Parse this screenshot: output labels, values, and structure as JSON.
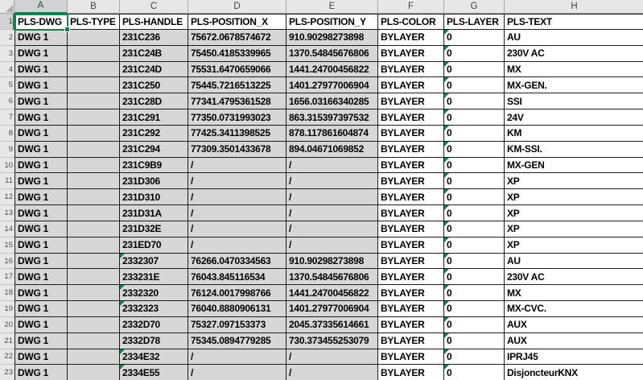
{
  "selection": {
    "cell": "A1",
    "column": "A",
    "row": "1"
  },
  "column_letters": [
    "A",
    "B",
    "C",
    "D",
    "E",
    "F",
    "G",
    "H"
  ],
  "row_numbers": [
    "1",
    "2",
    "3",
    "4",
    "5",
    "6",
    "7",
    "8",
    "9",
    "10",
    "11",
    "12",
    "13",
    "14",
    "15",
    "16",
    "17",
    "18",
    "19",
    "20",
    "21",
    "22",
    "23"
  ],
  "header_row": [
    "PLS-DWG",
    "PLS-TYPE",
    "PLS-HANDLE",
    "PLS-POSITION_X",
    "PLS-POSITION_Y",
    "PLS-COLOR",
    "PLS-LAYER",
    "PLS-TEXT"
  ],
  "rows": [
    {
      "cells": [
        "DWG 1",
        "",
        "231C236",
        "75672.0678574672",
        "910.90298273898",
        "BYLAYER",
        "0",
        "AU"
      ],
      "error_cols": [
        6
      ]
    },
    {
      "cells": [
        "DWG 1",
        "",
        "231C24B",
        "75450.4185339965",
        "1370.54845676806",
        "BYLAYER",
        "0",
        "230V AC"
      ],
      "error_cols": [
        6
      ]
    },
    {
      "cells": [
        "DWG 1",
        "",
        "231C24D",
        "75531.6470659066",
        "1441.24700456822",
        "BYLAYER",
        "0",
        "MX"
      ],
      "error_cols": [
        6
      ]
    },
    {
      "cells": [
        "DWG 1",
        "",
        "231C250",
        "75445.7216513225",
        "1401.27977006904",
        "BYLAYER",
        "0",
        "MX-GEN."
      ],
      "error_cols": [
        6
      ]
    },
    {
      "cells": [
        "DWG 1",
        "",
        "231C28D",
        "77341.4795361528",
        "1656.03166340285",
        "BYLAYER",
        "0",
        "SSI"
      ],
      "error_cols": [
        6
      ]
    },
    {
      "cells": [
        "DWG 1",
        "",
        "231C291",
        "77350.0731993023",
        "863.315397397532",
        "BYLAYER",
        "0",
        "24V"
      ],
      "error_cols": [
        6
      ]
    },
    {
      "cells": [
        "DWG 1",
        "",
        "231C292",
        "77425.3411398525",
        "878.117861604874",
        "BYLAYER",
        "0",
        "KM"
      ],
      "error_cols": [
        6
      ]
    },
    {
      "cells": [
        "DWG 1",
        "",
        "231C294",
        "77309.3501433678",
        "894.04671069852",
        "BYLAYER",
        "0",
        "KM-SSI."
      ],
      "error_cols": [
        6
      ]
    },
    {
      "cells": [
        "DWG 1",
        "",
        "231C9B9",
        "/",
        "/",
        "BYLAYER",
        "0",
        "MX-GEN"
      ],
      "error_cols": [
        6
      ]
    },
    {
      "cells": [
        "DWG 1",
        "",
        "231D306",
        "/",
        "/",
        "BYLAYER",
        "0",
        "XP"
      ],
      "error_cols": [
        6
      ]
    },
    {
      "cells": [
        "DWG 1",
        "",
        "231D310",
        "/",
        "/",
        "BYLAYER",
        "0",
        "XP"
      ],
      "error_cols": [
        6
      ]
    },
    {
      "cells": [
        "DWG 1",
        "",
        "231D31A",
        "/",
        "/",
        "BYLAYER",
        "0",
        "XP"
      ],
      "error_cols": [
        6
      ]
    },
    {
      "cells": [
        "DWG 1",
        "",
        "231D32E",
        "/",
        "/",
        "BYLAYER",
        "0",
        "XP"
      ],
      "error_cols": [
        6
      ]
    },
    {
      "cells": [
        "DWG 1",
        "",
        "231ED70",
        "/",
        "/",
        "BYLAYER",
        "0",
        "XP"
      ],
      "error_cols": [
        6
      ]
    },
    {
      "cells": [
        "DWG 1",
        "",
        "2332307",
        "76266.0470334563",
        "910.90298273898",
        "BYLAYER",
        "0",
        "AU"
      ],
      "error_cols": [
        2,
        6
      ]
    },
    {
      "cells": [
        "DWG 1",
        "",
        "233231E",
        "76043.845116534",
        "1370.54845676806",
        "BYLAYER",
        "0",
        "230V AC"
      ],
      "error_cols": [
        6
      ]
    },
    {
      "cells": [
        "DWG 1",
        "",
        "2332320",
        "76124.0017998766",
        "1441.24700456822",
        "BYLAYER",
        "0",
        "MX"
      ],
      "error_cols": [
        2,
        6
      ]
    },
    {
      "cells": [
        "DWG 1",
        "",
        "2332323",
        "76040.8880906131",
        "1401.27977006904",
        "BYLAYER",
        "0",
        "MX-CVC."
      ],
      "error_cols": [
        2,
        6
      ]
    },
    {
      "cells": [
        "DWG 1",
        "",
        "2332D70",
        "75327.097153373",
        "2045.37335614661",
        "BYLAYER",
        "0",
        "AUX"
      ],
      "error_cols": [
        6
      ]
    },
    {
      "cells": [
        "DWG 1",
        "",
        "2332D78",
        "75345.0894779285",
        "730.373455253079",
        "BYLAYER",
        "0",
        "AUX"
      ],
      "error_cols": [
        6
      ]
    },
    {
      "cells": [
        "DWG 1",
        "",
        "2334E32",
        "/",
        "/",
        "BYLAYER",
        "0",
        "IPRJ45"
      ],
      "error_cols": [
        2,
        6
      ]
    },
    {
      "cells": [
        "DWG 1",
        "",
        "2334E55",
        "/",
        "/",
        "BYLAYER",
        "0",
        "DisjoncteurKNX"
      ],
      "error_cols": [
        2,
        6
      ]
    }
  ],
  "colors": {
    "selection_green": "#14804A",
    "error_triangle_green": "#14804A",
    "filled_cell_gray": "#D7D7D7",
    "header_strip_gray": "#E7E7E7",
    "grid_border": "#1d1d1d"
  }
}
